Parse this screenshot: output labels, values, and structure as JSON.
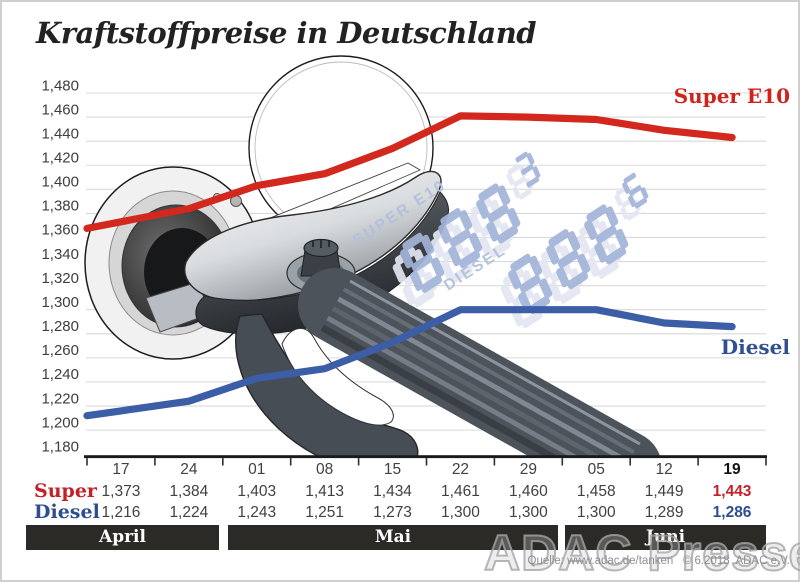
{
  "title": "Kraftstoffpreise in Deutschland",
  "chart_data": {
    "type": "line",
    "title": "Kraftstoffpreise in Deutschland",
    "x_dates": [
      "17",
      "24",
      "01",
      "08",
      "15",
      "22",
      "29",
      "05",
      "12",
      "19"
    ],
    "months": [
      {
        "label": "April",
        "date_cols": [
          0,
          1
        ]
      },
      {
        "label": "Mai",
        "date_cols": [
          2,
          6
        ]
      },
      {
        "label": "Juni",
        "date_cols": [
          7,
          9
        ]
      }
    ],
    "ylim": [
      1.18,
      1.48
    ],
    "ytick_step": 0.02,
    "yticks": [
      "1,480",
      "1,460",
      "1,440",
      "1,420",
      "1,400",
      "1,380",
      "1,360",
      "1,340",
      "1,320",
      "1,300",
      "1,280",
      "1,260",
      "1,240",
      "1,220",
      "1,200",
      "1,180"
    ],
    "grid": true,
    "legend_position": "line-end-labels",
    "series": [
      {
        "name": "Super E10",
        "color": "#d2281d",
        "values": [
          1.373,
          1.384,
          1.403,
          1.413,
          1.434,
          1.461,
          1.46,
          1.458,
          1.449,
          1.443
        ]
      },
      {
        "name": "Diesel",
        "color": "#3b5ea7",
        "values": [
          1.216,
          1.224,
          1.243,
          1.251,
          1.273,
          1.3,
          1.3,
          1.3,
          1.289,
          1.286
        ]
      }
    ]
  },
  "table": {
    "date_row": [
      "17",
      "24",
      "01",
      "08",
      "15",
      "22",
      "29",
      "05",
      "12",
      "19"
    ],
    "rows": [
      {
        "label": "Super",
        "color": "#c22127",
        "values": [
          "1,373",
          "1,384",
          "1,403",
          "1,413",
          "1,434",
          "1,461",
          "1,460",
          "1,458",
          "1,449",
          "1,443"
        ]
      },
      {
        "label": "Diesel",
        "color": "#2e4e8f",
        "values": [
          "1,216",
          "1,224",
          "1,243",
          "1,251",
          "1,273",
          "1,300",
          "1,300",
          "1,300",
          "1,289",
          "1,286"
        ]
      }
    ],
    "last_column_highlighted": true
  },
  "pump_display_watermark": {
    "super": {
      "label": "SUPER E10",
      "digits": "888",
      "superscript": "3"
    },
    "diesel": {
      "label": "DIESEL",
      "digits": "888",
      "superscript": "6"
    },
    "active_color": "#a2b4d8",
    "ghost_color": "#e3e7f1",
    "label_color": "#b3c0dc"
  },
  "watermark": "ADAC Presse",
  "source": "Quelle: www.adac.de/tanken   © 6.2018  ADAC e.V.",
  "colors": {
    "grid": "#d9d9d9",
    "axis": "#1a1a1a",
    "ytick_text": "#3e3e3e",
    "month_bar": "#2b2a27",
    "title_text": "#222222"
  }
}
